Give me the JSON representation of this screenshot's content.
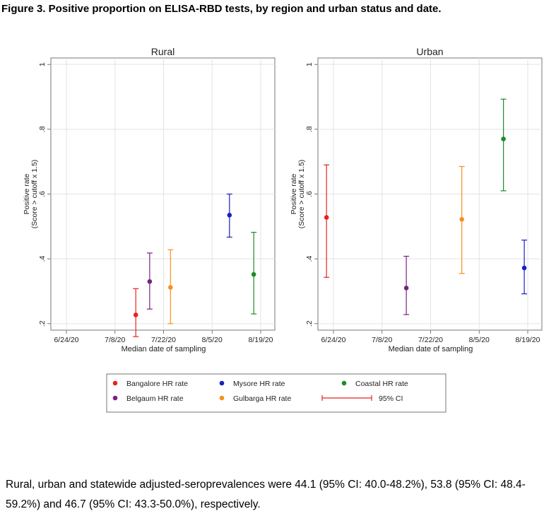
{
  "figure": {
    "title": "Figure 3.  Positive proportion on ELISA-RBD tests, by region and urban status and date.",
    "caption": "Rural, urban and statewide adjusted-seroprevalences were 44.1 (95% CI: 40.0-48.2%), 53.8 (95% CI: 48.4-59.2%) and 46.7 (95% CI: 43.3-50.0%), respectively."
  },
  "colors": {
    "Bangalore": "#e8231f",
    "Belgaum": "#7b1f86",
    "Mysore": "#1c1fc4",
    "Gulbarga": "#f7901e",
    "Coastal": "#1e8a2b",
    "grid": "#e3e3e3",
    "axis": "#555555"
  },
  "chart_data": [
    {
      "type": "scatter",
      "title": "Rural",
      "xlabel": "Median date of sampling",
      "ylabel": "Positive rate",
      "ylabel2": "(Score > cutoff x 1.5)",
      "x_ticks": [
        "6/24/20",
        "7/8/20",
        "7/22/20",
        "8/5/20",
        "8/19/20"
      ],
      "y_ticks": [
        "1",
        ".8",
        ".6",
        ".4",
        ".2"
      ],
      "y_tick_values": [
        1.0,
        0.8,
        0.6,
        0.4,
        0.2
      ],
      "ylim": [
        0.18,
        1.02
      ],
      "xlim": [
        "6/24/20",
        "8/19/20"
      ],
      "grid": true,
      "series": [
        {
          "name": "Bangalore HR rate",
          "color_key": "Bangalore",
          "x": "7/14/20",
          "y": 0.227,
          "ci": [
            0.16,
            0.308
          ]
        },
        {
          "name": "Belgaum HR rate",
          "color_key": "Belgaum",
          "x": "7/18/20",
          "y": 0.33,
          "ci": [
            0.245,
            0.418
          ]
        },
        {
          "name": "Gulbarga HR rate",
          "color_key": "Gulbarga",
          "x": "7/24/20",
          "y": 0.312,
          "ci": [
            0.2,
            0.428
          ]
        },
        {
          "name": "Mysore HR rate",
          "color_key": "Mysore",
          "x": "8/10/20",
          "y": 0.535,
          "ci": [
            0.467,
            0.6
          ]
        },
        {
          "name": "Coastal HR rate",
          "color_key": "Coastal",
          "x": "8/17/20",
          "y": 0.352,
          "ci": [
            0.23,
            0.482
          ]
        }
      ]
    },
    {
      "type": "scatter",
      "title": "Urban",
      "xlabel": "Median date of sampling",
      "ylabel": "Positive rate",
      "ylabel2": "(Score > cutoff x 1.5)",
      "x_ticks": [
        "6/24/20",
        "7/8/20",
        "7/22/20",
        "8/5/20",
        "8/19/20"
      ],
      "y_ticks": [
        "1",
        ".8",
        ".6",
        ".4",
        ".2"
      ],
      "y_tick_values": [
        1.0,
        0.8,
        0.6,
        0.4,
        0.2
      ],
      "ylim": [
        0.18,
        1.02
      ],
      "xlim": [
        "6/24/20",
        "8/19/20"
      ],
      "grid": true,
      "series": [
        {
          "name": "Bangalore HR rate",
          "color_key": "Bangalore",
          "x": "6/22/20",
          "y": 0.528,
          "ci": [
            0.343,
            0.69
          ]
        },
        {
          "name": "Belgaum HR rate",
          "color_key": "Belgaum",
          "x": "7/15/20",
          "y": 0.31,
          "ci": [
            0.228,
            0.408
          ]
        },
        {
          "name": "Gulbarga HR rate",
          "color_key": "Gulbarga",
          "x": "7/31/20",
          "y": 0.522,
          "ci": [
            0.355,
            0.685
          ]
        },
        {
          "name": "Coastal HR rate",
          "color_key": "Coastal",
          "x": "8/12/20",
          "y": 0.77,
          "ci": [
            0.61,
            0.893
          ]
        },
        {
          "name": "Mysore HR rate",
          "color_key": "Mysore",
          "x": "8/18/20",
          "y": 0.372,
          "ci": [
            0.292,
            0.458
          ]
        }
      ]
    }
  ],
  "legend": {
    "placement": "bottom",
    "items": [
      {
        "label": "Bangalore HR rate",
        "color_key": "Bangalore",
        "kind": "dot"
      },
      {
        "label": "Mysore HR rate",
        "color_key": "Mysore",
        "kind": "dot"
      },
      {
        "label": "Coastal HR rate",
        "color_key": "Coastal",
        "kind": "dot"
      },
      {
        "label": "Belgaum HR rate",
        "color_key": "Belgaum",
        "kind": "dot"
      },
      {
        "label": "Gulbarga HR rate",
        "color_key": "Gulbarga",
        "kind": "dot"
      },
      {
        "label": "95% CI",
        "color_key": "Bangalore",
        "kind": "ci"
      }
    ]
  }
}
